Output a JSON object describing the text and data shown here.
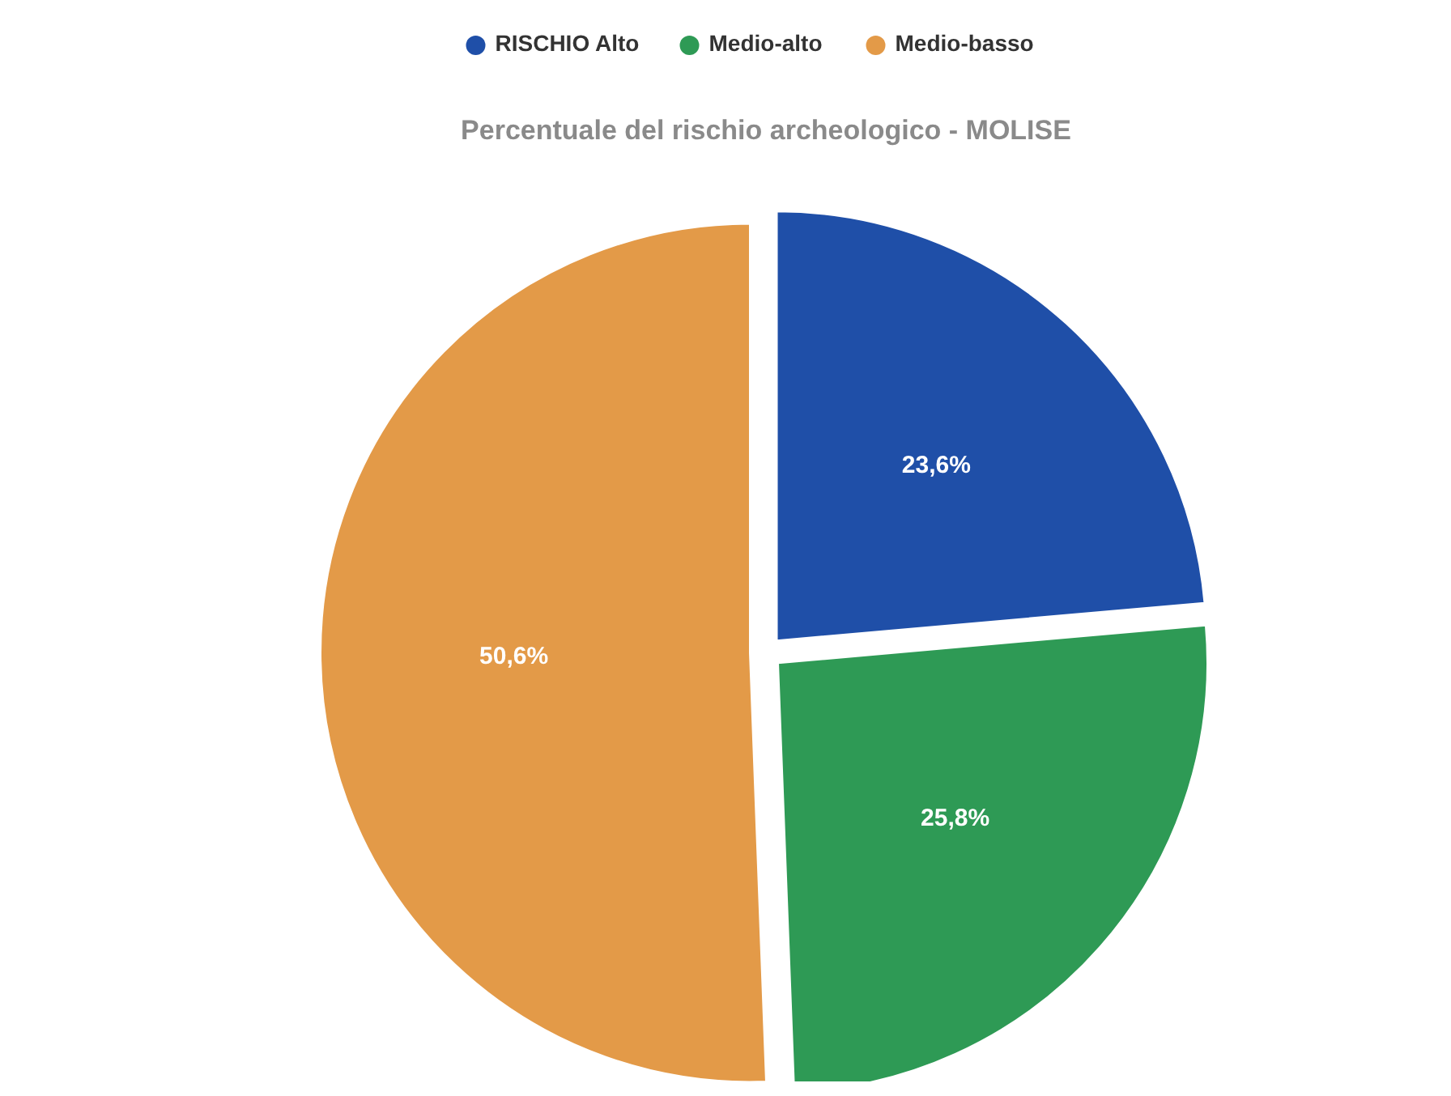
{
  "chart_data": {
    "type": "pie",
    "title": "Percentuale del rischio archeologico - MOLISE",
    "categories": [
      "RISCHIO Alto",
      "Medio-alto",
      "Medio-basso"
    ],
    "values": [
      23.6,
      25.8,
      50.6
    ],
    "colors": [
      "#1f4fa8",
      "#2e9a55",
      "#e39a48"
    ],
    "value_labels": [
      "23,6%",
      "25,8%",
      "50,6%"
    ],
    "legend": "top"
  }
}
